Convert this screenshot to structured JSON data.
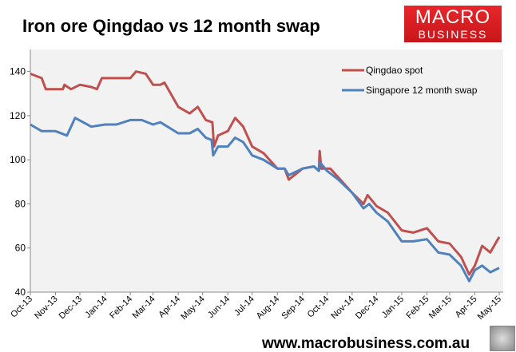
{
  "title": "Iron ore Qingdao vs 12 month swap",
  "logo": {
    "line1": "MACRO",
    "line2": "BUSINESS"
  },
  "footer": "www.macrobusiness.com.au",
  "chart_data": {
    "type": "line",
    "title": "Iron ore Qingdao vs 12 month swap",
    "xlabel": "",
    "ylabel": "",
    "ylim": [
      40,
      150
    ],
    "yticks": [
      40,
      60,
      80,
      100,
      120,
      140
    ],
    "xlim": [
      "2013-10-01",
      "2015-05-01"
    ],
    "xticks": [
      "Oct-13",
      "Nov-13",
      "Dec-13",
      "Jan-14",
      "Feb-14",
      "Mar-14",
      "Apr-14",
      "May-14",
      "Jun-14",
      "Jul-14",
      "Aug-14",
      "Sep-14",
      "Oct-14",
      "Nov-14",
      "Dec-14",
      "Jan-15",
      "Feb-15",
      "Mar-15",
      "Apr-15",
      "May-15"
    ],
    "grid": false,
    "legend": "top-right",
    "background": "#f2f2f2",
    "series": [
      {
        "name": "Qingdao spot",
        "color": "#c0504d",
        "points": [
          [
            "2013-10-01",
            139
          ],
          [
            "2013-10-15",
            137
          ],
          [
            "2013-10-20",
            132
          ],
          [
            "2013-11-10",
            132
          ],
          [
            "2013-11-12",
            134
          ],
          [
            "2013-11-20",
            132
          ],
          [
            "2013-12-01",
            134
          ],
          [
            "2013-12-15",
            133
          ],
          [
            "2013-12-22",
            132
          ],
          [
            "2013-12-28",
            137
          ],
          [
            "2014-01-15",
            137
          ],
          [
            "2014-02-01",
            137
          ],
          [
            "2014-02-08",
            140
          ],
          [
            "2014-02-20",
            139
          ],
          [
            "2014-03-01",
            134
          ],
          [
            "2014-03-10",
            134
          ],
          [
            "2014-03-15",
            135
          ],
          [
            "2014-04-01",
            124
          ],
          [
            "2014-04-15",
            121
          ],
          [
            "2014-04-25",
            124
          ],
          [
            "2014-05-05",
            118
          ],
          [
            "2014-05-13",
            117
          ],
          [
            "2014-05-15",
            106
          ],
          [
            "2014-05-20",
            111
          ],
          [
            "2014-06-01",
            113
          ],
          [
            "2014-06-10",
            119
          ],
          [
            "2014-06-20",
            115
          ],
          [
            "2014-07-01",
            106
          ],
          [
            "2014-07-15",
            103
          ],
          [
            "2014-08-01",
            96
          ],
          [
            "2014-08-10",
            96
          ],
          [
            "2014-08-15",
            91
          ],
          [
            "2014-09-01",
            96
          ],
          [
            "2014-09-15",
            97
          ],
          [
            "2014-09-21",
            95
          ],
          [
            "2014-09-22",
            104
          ],
          [
            "2014-09-24",
            96
          ],
          [
            "2014-10-05",
            96
          ],
          [
            "2014-10-15",
            92
          ],
          [
            "2014-11-01",
            85
          ],
          [
            "2014-11-15",
            80
          ],
          [
            "2014-11-20",
            84
          ],
          [
            "2014-12-01",
            79
          ],
          [
            "2014-12-15",
            76
          ],
          [
            "2015-01-01",
            68
          ],
          [
            "2015-01-15",
            67
          ],
          [
            "2015-02-01",
            69
          ],
          [
            "2015-02-15",
            63
          ],
          [
            "2015-03-01",
            62
          ],
          [
            "2015-03-15",
            56
          ],
          [
            "2015-03-25",
            48
          ],
          [
            "2015-04-01",
            52
          ],
          [
            "2015-04-10",
            61
          ],
          [
            "2015-04-20",
            58
          ],
          [
            "2015-05-01",
            65
          ]
        ]
      },
      {
        "name": "Singapore 12 month swap",
        "color": "#4f81bd",
        "points": [
          [
            "2013-10-01",
            116
          ],
          [
            "2013-10-15",
            113
          ],
          [
            "2013-11-01",
            113
          ],
          [
            "2013-11-15",
            111
          ],
          [
            "2013-11-25",
            119
          ],
          [
            "2013-12-15",
            115
          ],
          [
            "2014-01-01",
            116
          ],
          [
            "2014-01-15",
            116
          ],
          [
            "2014-02-01",
            118
          ],
          [
            "2014-02-15",
            118
          ],
          [
            "2014-03-01",
            116
          ],
          [
            "2014-03-10",
            117
          ],
          [
            "2014-04-01",
            112
          ],
          [
            "2014-04-15",
            112
          ],
          [
            "2014-04-25",
            114
          ],
          [
            "2014-05-05",
            110
          ],
          [
            "2014-05-12",
            109
          ],
          [
            "2014-05-14",
            102
          ],
          [
            "2014-05-20",
            106
          ],
          [
            "2014-06-01",
            106
          ],
          [
            "2014-06-10",
            110
          ],
          [
            "2014-06-20",
            108
          ],
          [
            "2014-07-01",
            102
          ],
          [
            "2014-07-15",
            100
          ],
          [
            "2014-08-01",
            96
          ],
          [
            "2014-08-10",
            96
          ],
          [
            "2014-08-15",
            93
          ],
          [
            "2014-09-01",
            96
          ],
          [
            "2014-09-15",
            97
          ],
          [
            "2014-09-21",
            95
          ],
          [
            "2014-09-22",
            99
          ],
          [
            "2014-10-01",
            95
          ],
          [
            "2014-10-15",
            91
          ],
          [
            "2014-11-01",
            85
          ],
          [
            "2014-11-15",
            78
          ],
          [
            "2014-11-22",
            80
          ],
          [
            "2014-12-01",
            76
          ],
          [
            "2014-12-15",
            72
          ],
          [
            "2015-01-01",
            63
          ],
          [
            "2015-01-15",
            63
          ],
          [
            "2015-02-01",
            64
          ],
          [
            "2015-02-15",
            58
          ],
          [
            "2015-03-01",
            57
          ],
          [
            "2015-03-15",
            52
          ],
          [
            "2015-03-25",
            45
          ],
          [
            "2015-04-01",
            50
          ],
          [
            "2015-04-10",
            52
          ],
          [
            "2015-04-20",
            49
          ],
          [
            "2015-05-01",
            51
          ]
        ]
      }
    ]
  }
}
